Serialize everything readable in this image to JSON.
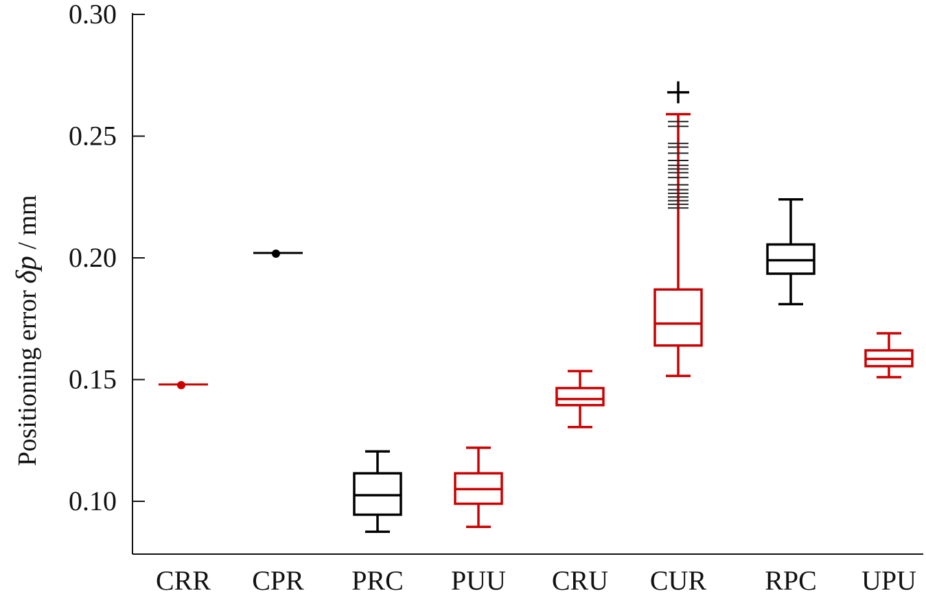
{
  "chart_data": {
    "type": "box",
    "ylabel_text": "Positioning error ",
    "ylabel_symbol": "δp",
    "ylabel_unit": " / mm",
    "ylim": [
      0.078,
      0.3
    ],
    "yticks": [
      0.1,
      0.15,
      0.2,
      0.25,
      0.3
    ],
    "ytick_labels": [
      "0.10",
      "0.15",
      "0.20",
      "0.25",
      "0.30"
    ],
    "grid": false,
    "legend": "none",
    "colors": {
      "black": "#000000",
      "red": "#cc0000"
    },
    "categories": [
      "CRR",
      "CPR",
      "PRC",
      "PUU",
      "CRU",
      "CUR",
      "RPC",
      "UPU"
    ],
    "boxes": [
      {
        "category": "CRR",
        "kind": "point",
        "value": 0.148,
        "color": "red"
      },
      {
        "category": "CPR",
        "kind": "point",
        "value": 0.202,
        "color": "black"
      },
      {
        "category": "PRC",
        "kind": "box",
        "whisker_low": 0.0875,
        "q1": 0.0945,
        "median": 0.1025,
        "q3": 0.1115,
        "whisker_high": 0.1205,
        "color": "black",
        "outliers": []
      },
      {
        "category": "PUU",
        "kind": "box",
        "whisker_low": 0.0895,
        "q1": 0.099,
        "median": 0.105,
        "q3": 0.1115,
        "whisker_high": 0.122,
        "color": "red",
        "outliers": []
      },
      {
        "category": "CRU",
        "kind": "box",
        "whisker_low": 0.1305,
        "q1": 0.1395,
        "median": 0.142,
        "q3": 0.1465,
        "whisker_high": 0.1535,
        "color": "red",
        "outliers": []
      },
      {
        "category": "CUR",
        "kind": "box",
        "whisker_low": 0.1515,
        "q1": 0.164,
        "median": 0.173,
        "q3": 0.187,
        "whisker_high": 0.259,
        "color": "red",
        "outliers": [
          0.2205,
          0.222,
          0.2235,
          0.225,
          0.2265,
          0.228,
          0.23,
          0.233,
          0.235,
          0.2365,
          0.238,
          0.24,
          0.243,
          0.2455,
          0.247,
          0.254,
          0.256
        ],
        "far_outliers": [
          0.268
        ]
      },
      {
        "category": "RPC",
        "kind": "box",
        "whisker_low": 0.181,
        "q1": 0.1935,
        "median": 0.199,
        "q3": 0.2055,
        "whisker_high": 0.224,
        "color": "black",
        "outliers": []
      },
      {
        "category": "UPU",
        "kind": "box",
        "whisker_low": 0.151,
        "q1": 0.1555,
        "median": 0.1585,
        "q3": 0.162,
        "whisker_high": 0.169,
        "color": "red",
        "outliers": []
      }
    ]
  }
}
